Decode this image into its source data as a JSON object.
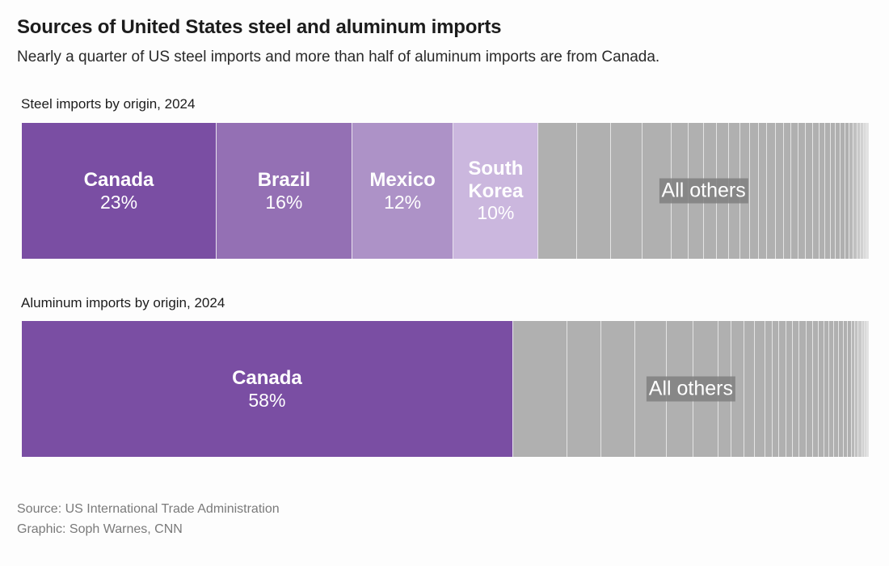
{
  "header": {
    "title": "Sources of United States steel and aluminum imports",
    "subtitle": "Nearly a quarter of US steel imports and more than half of aluminum imports are from Canada."
  },
  "footer": {
    "source": "Source: US International Trade Administration",
    "credit": "Graphic: Soph Warnes, CNN"
  },
  "colors": {
    "others": "#b0b0b0",
    "others_label_bg": "#888888",
    "label_text": "#ffffff"
  },
  "chart_data": [
    {
      "type": "bar",
      "subtype": "stacked-100-horizontal",
      "title": "Steel imports by origin, 2024",
      "unit": "percent of imports",
      "highlighted": [
        {
          "name": "Canada",
          "value": 23,
          "label": "23%",
          "color": "#7a4ea3"
        },
        {
          "name": "Brazil",
          "value": 16,
          "label": "16%",
          "color": "#9470b4"
        },
        {
          "name": "Mexico",
          "value": 12,
          "label": "12%",
          "color": "#ad92c7"
        },
        {
          "name": "South Korea",
          "value": 10,
          "label": "10%",
          "color": "#cbb7de"
        }
      ],
      "others": {
        "label": "All others",
        "total_value": 39,
        "segment_values_estimated": [
          4.7,
          4.1,
          3.8,
          3.5,
          2.1,
          1.8,
          1.6,
          1.5,
          1.3,
          1.2,
          1.1,
          1.0,
          1.0,
          1.0,
          0.9,
          0.9,
          0.9,
          0.8,
          0.8,
          0.7,
          0.7,
          0.6,
          0.6,
          0.6,
          0.5,
          0.4,
          0.5,
          0.4,
          0.4,
          0.3,
          0.3
        ]
      }
    },
    {
      "type": "bar",
      "subtype": "stacked-100-horizontal",
      "title": "Aluminum imports by origin, 2024",
      "unit": "percent of imports",
      "highlighted": [
        {
          "name": "Canada",
          "value": 58,
          "label": "58%",
          "color": "#7a4ea3"
        }
      ],
      "others": {
        "label": "All others",
        "total_value": 42,
        "segment_values_estimated": [
          6.4,
          4.1,
          4.0,
          3.7,
          3.2,
          3.0,
          1.5,
          1.5,
          1.3,
          1.2,
          0.9,
          0.8,
          0.8,
          0.8,
          0.8,
          0.8,
          0.8,
          0.7,
          0.6,
          0.6,
          0.6,
          0.6,
          0.5,
          0.5,
          0.5,
          0.4,
          0.4,
          0.4,
          0.3,
          0.3,
          0.2
        ]
      }
    }
  ]
}
